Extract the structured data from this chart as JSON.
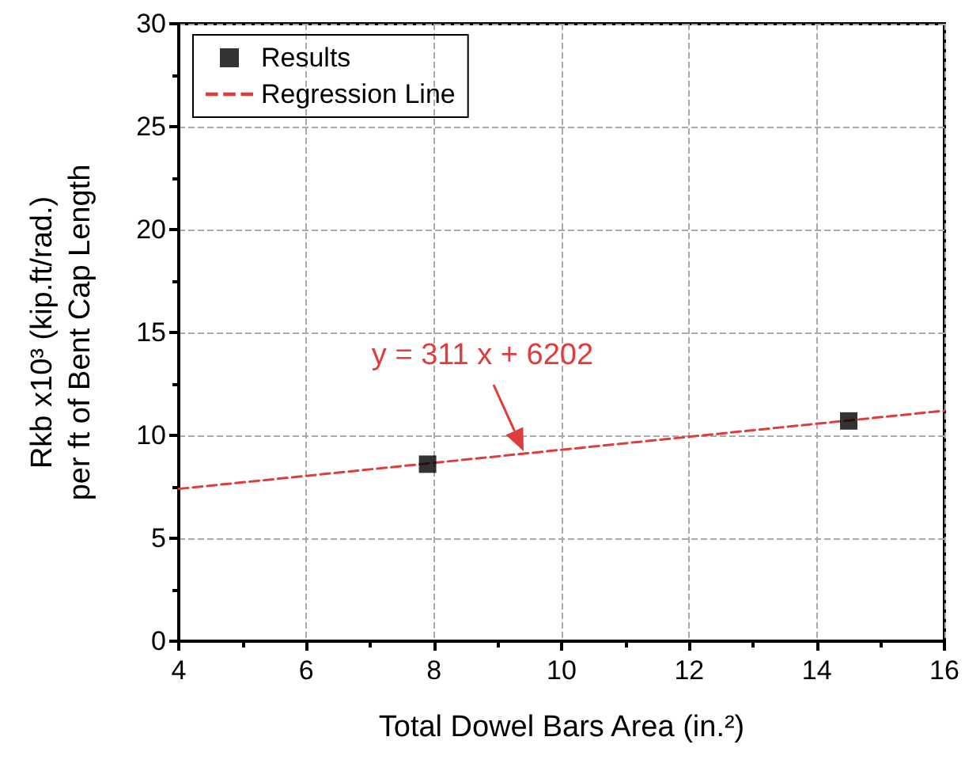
{
  "chart_data": {
    "type": "scatter",
    "xlabel": "Total Dowel Bars Area (in.²)",
    "ylabel": "Rkb x10³ (kip.ft/rad.)\nper ft of Bent Cap Length",
    "series": [
      {
        "name": "Results",
        "type": "scatter",
        "color": "#000000",
        "marker": "square",
        "x": [
          7.9,
          14.5
        ],
        "values": [
          8.6,
          10.7
        ]
      },
      {
        "name": "Regression Line",
        "type": "line",
        "color": "#e03c3c",
        "marker": "none",
        "line_style": "dashed",
        "x": [
          4,
          16
        ],
        "values": [
          7.4,
          11.2
        ]
      }
    ],
    "xlim": [
      4,
      16
    ],
    "xticks": [
      4,
      6,
      8,
      10,
      12,
      14,
      16
    ],
    "ylim": [
      0,
      30
    ],
    "yticks": [
      0,
      5,
      10,
      15,
      20,
      25,
      30
    ],
    "grid": true,
    "legend": "top left",
    "annotations": [
      "y = 311 x + 6202"
    ]
  }
}
